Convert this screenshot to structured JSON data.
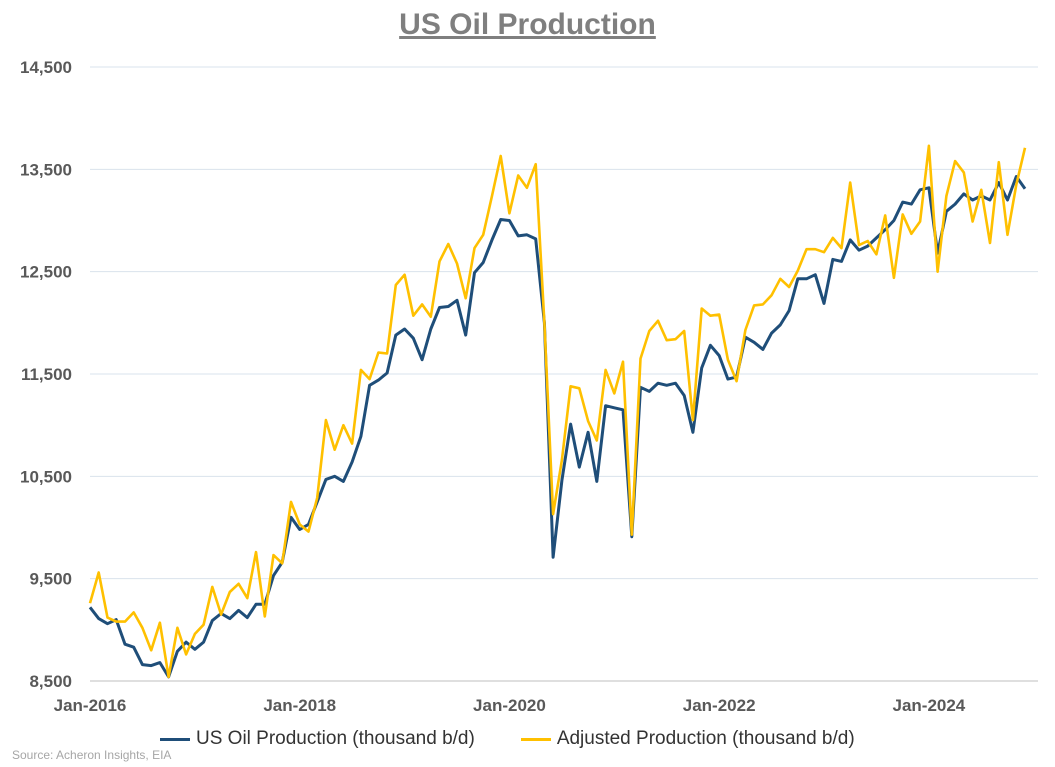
{
  "chart_data": {
    "type": "line",
    "title": "US Oil Production",
    "source": "Source: Acheron Insights, EIA",
    "xlabel": "",
    "ylabel": "",
    "ylim": [
      8500,
      14500
    ],
    "yticks": [
      8500,
      9500,
      10500,
      11500,
      12500,
      13500,
      14500
    ],
    "ytick_labels": [
      "8,500",
      "9,500",
      "10,500",
      "11,500",
      "12,500",
      "13,500",
      "14,500"
    ],
    "xticks": [
      "Jan-2016",
      "Jan-2018",
      "Jan-2020",
      "Jan-2022",
      "Jan-2024"
    ],
    "x_start": "Jan-2016",
    "x_frequency": "monthly",
    "grid": "horizontal",
    "legend_position": "bottom",
    "series": [
      {
        "name": "US Oil Production (thousand b/d)",
        "color": "#1f4e79",
        "values": [
          9220,
          9110,
          9060,
          9100,
          8860,
          8830,
          8660,
          8650,
          8680,
          8540,
          8790,
          8880,
          8810,
          8880,
          9090,
          9160,
          9110,
          9190,
          9120,
          9250,
          9250,
          9530,
          9660,
          10100,
          9980,
          10030,
          10250,
          10470,
          10500,
          10450,
          10640,
          10890,
          11390,
          11440,
          11510,
          11880,
          11940,
          11850,
          11640,
          11940,
          12150,
          12160,
          12220,
          11880,
          12490,
          12590,
          12810,
          13010,
          13000,
          12850,
          12860,
          12820,
          12000,
          9710,
          10460,
          11010,
          10590,
          10930,
          10450,
          11190,
          11170,
          11150,
          9910,
          11370,
          11330,
          11410,
          11390,
          11410,
          11290,
          10930,
          11560,
          11780,
          11680,
          11450,
          11470,
          11860,
          11810,
          11740,
          11900,
          11980,
          12120,
          12430,
          12430,
          12470,
          12190,
          12620,
          12600,
          12810,
          12710,
          12750,
          12830,
          12910,
          13000,
          13180,
          13160,
          13300,
          13320,
          12680,
          13090,
          13160,
          13260,
          13200,
          13240,
          13200,
          13370,
          13200,
          13430,
          13310
        ]
      },
      {
        "name": "Adjusted Production (thousand b/d)",
        "color": "#ffc000",
        "values": [
          9260,
          9560,
          9120,
          9080,
          9080,
          9170,
          9020,
          8800,
          9070,
          8540,
          9020,
          8760,
          8960,
          9050,
          9420,
          9150,
          9370,
          9450,
          9310,
          9760,
          9130,
          9730,
          9650,
          10250,
          10030,
          9960,
          10290,
          11050,
          10760,
          11000,
          10820,
          11540,
          11450,
          11710,
          11700,
          12370,
          12470,
          12070,
          12180,
          12060,
          12600,
          12770,
          12580,
          12240,
          12730,
          12860,
          13240,
          13630,
          13070,
          13440,
          13320,
          13550,
          12000,
          10130,
          10660,
          11380,
          11360,
          11040,
          10850,
          11540,
          11310,
          11620,
          9930,
          11650,
          11920,
          12020,
          11830,
          11840,
          11920,
          11050,
          12140,
          12070,
          12080,
          11640,
          11430,
          11930,
          12170,
          12180,
          12270,
          12430,
          12350,
          12510,
          12720,
          12720,
          12690,
          12830,
          12730,
          13370,
          12760,
          12800,
          12670,
          13050,
          12440,
          13060,
          12870,
          12990,
          13730,
          12500,
          13240,
          13580,
          13470,
          12990,
          13300,
          12780,
          13570,
          12860,
          13350,
          13710
        ]
      }
    ]
  }
}
